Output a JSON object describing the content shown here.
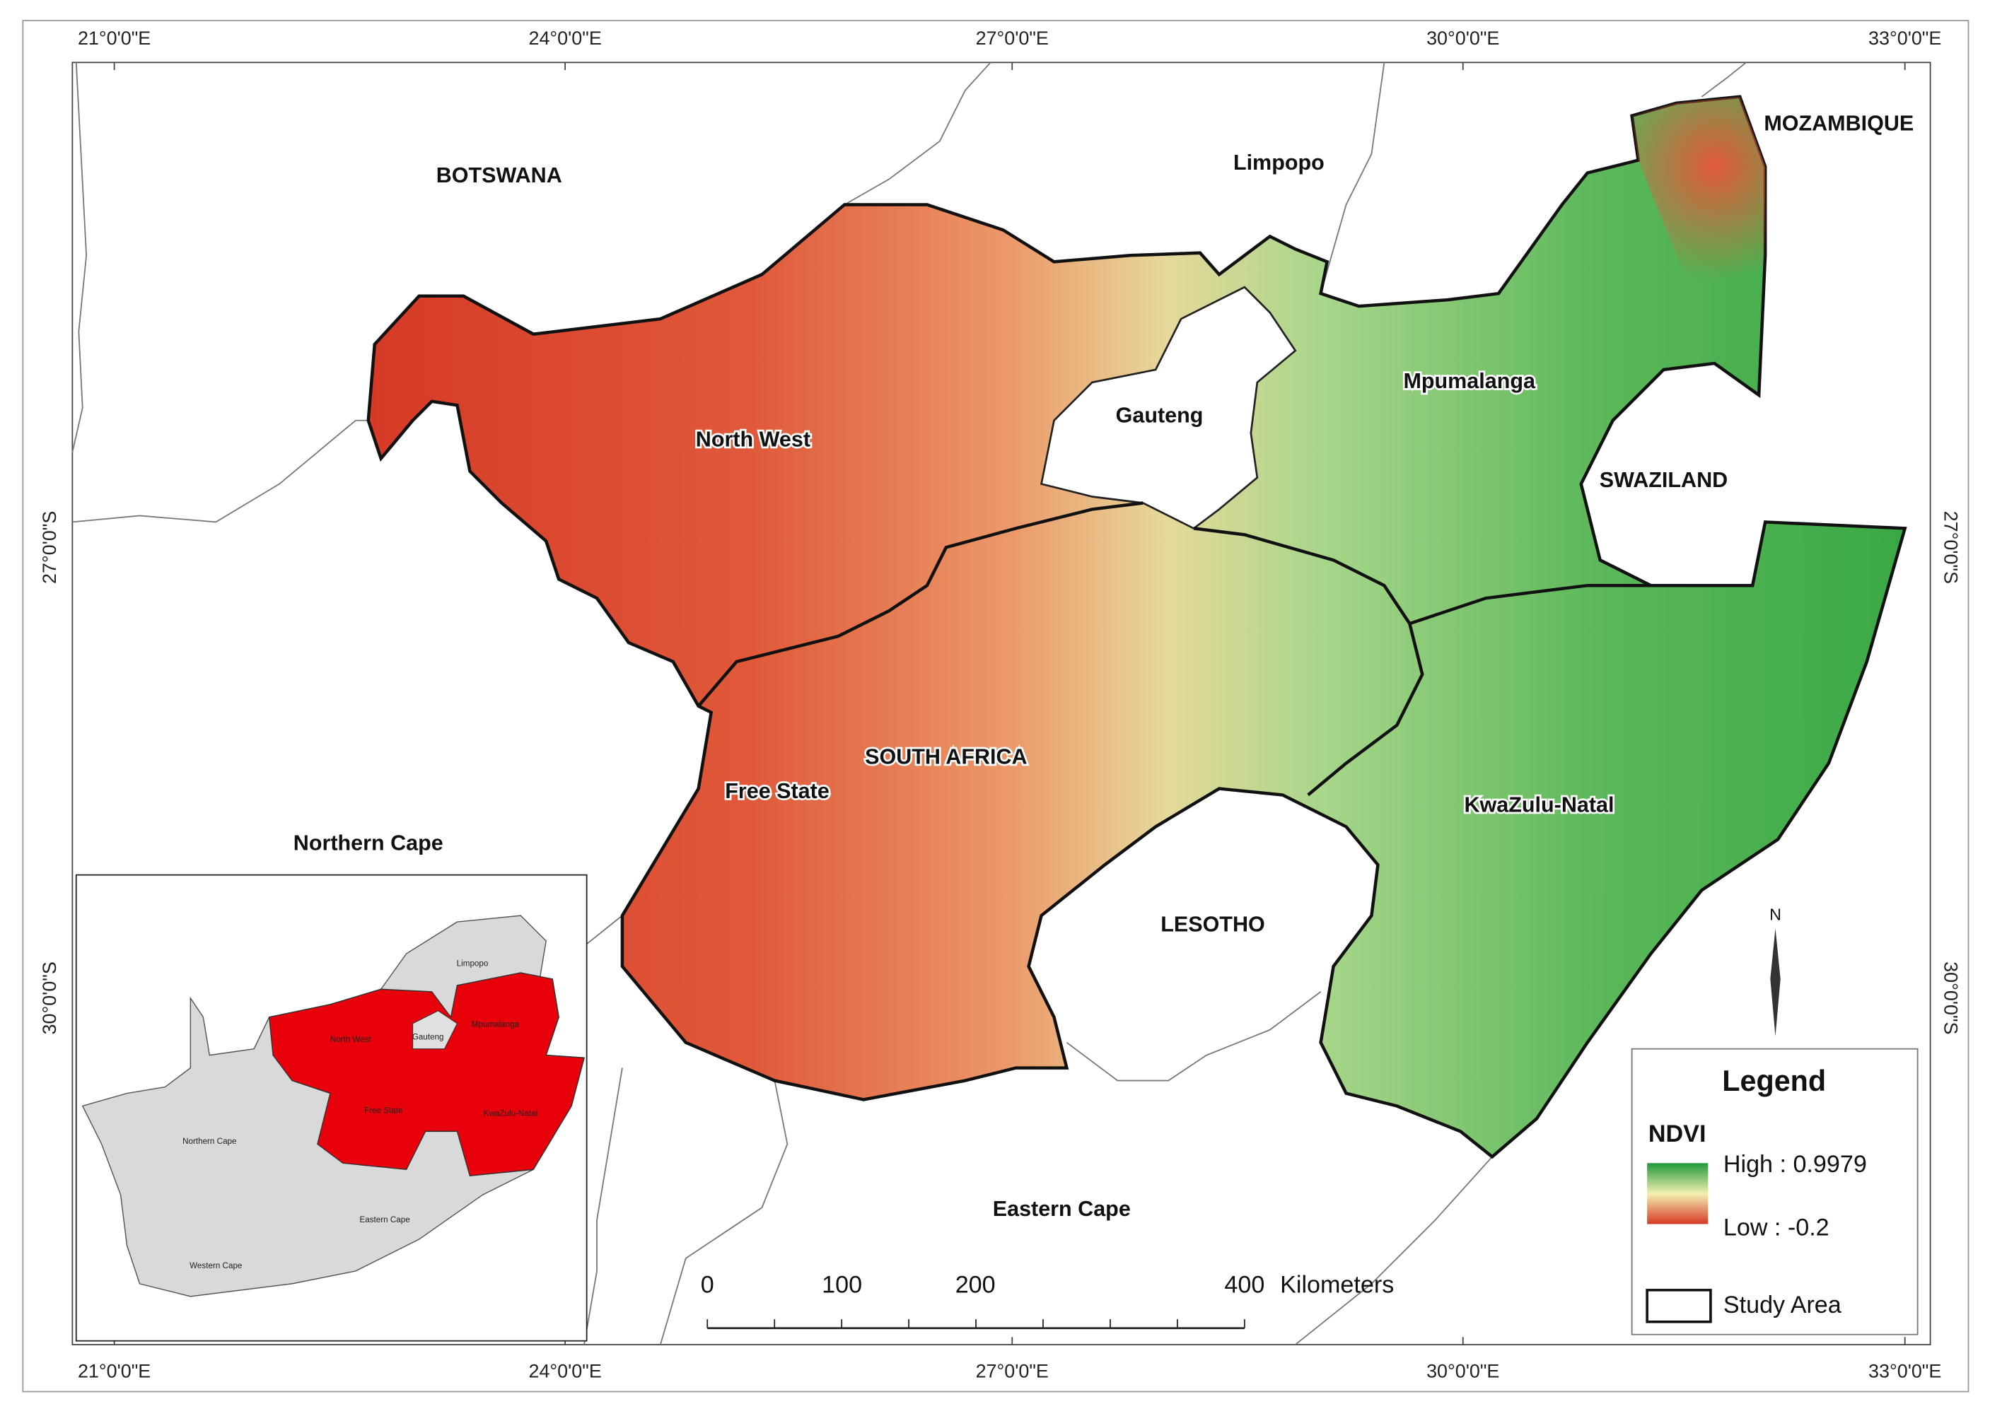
{
  "graticule": {
    "top": [
      "21°0'0\"E",
      "24°0'0\"E",
      "27°0'0\"E",
      "30°0'0\"E",
      "33°0'0\"E"
    ],
    "bottom": [
      "21°0'0\"E",
      "24°0'0\"E",
      "27°0'0\"E",
      "30°0'0\"E",
      "33°0'0\"E"
    ],
    "left": [
      "27°0'0\"S",
      "30°0'0\"S"
    ],
    "right": [
      "27°0'0\"S",
      "30°0'0\"S"
    ]
  },
  "labels": [
    "BOTSWANA",
    "Limpopo",
    "MOZAMBIQUE",
    "North West",
    "Gauteng",
    "Mpumalanga",
    "SWAZILAND",
    "SOUTH AFRICA",
    "Free State",
    "KwaZulu-Natal",
    "Northern Cape",
    "LESOTHO",
    "Eastern Cape"
  ],
  "inset": {
    "labels": [
      "Limpopo",
      "North West",
      "Gauteng",
      "Mpumalanga",
      "Free State",
      "KwaZulu-Natal",
      "Northern Cape",
      "Eastern Cape",
      "Western Cape"
    ]
  },
  "legend": {
    "title": "Legend",
    "ndvi": "NDVI",
    "high": "High : 0.9979",
    "low": "Low : -0.2",
    "study_area": "Study Area"
  },
  "scale_bar": {
    "ticks": [
      "0",
      "100",
      "200",
      "400"
    ],
    "unit": "Kilometers"
  },
  "north": "N"
}
